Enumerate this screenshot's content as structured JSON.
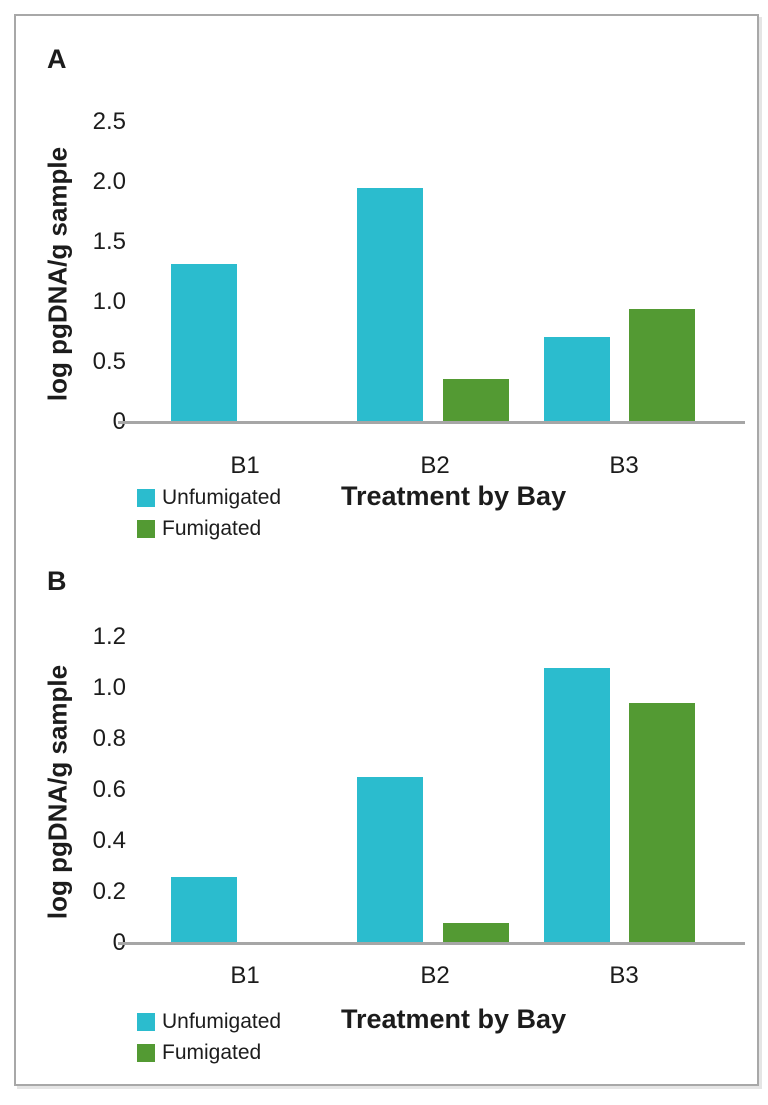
{
  "figure": {
    "panels": [
      {
        "label": "A",
        "y_axis_title": "log pgDNA/g sample",
        "x_axis_title": "Treatment by Bay",
        "legend": {
          "items": [
            {
              "label": "Unfumigated"
            },
            {
              "label": "Fumigated"
            }
          ]
        }
      },
      {
        "label": "B",
        "y_axis_title": "log pgDNA/g sample",
        "x_axis_title": "Treatment by Bay",
        "legend": {
          "items": [
            {
              "label": "Unfumigated"
            },
            {
              "label": "Fumigated"
            }
          ]
        }
      }
    ]
  },
  "colors": {
    "unfumigated": "#2BBCCE",
    "fumigated": "#539A33",
    "axis_line": "#A6A6A6",
    "frame_border": "#A8A8A8",
    "text": "#1C1C1C"
  },
  "chart_data": [
    {
      "type": "bar",
      "panel": "A",
      "title": "",
      "categories": [
        "B1",
        "B2",
        "B3"
      ],
      "series": [
        {
          "name": "Unfumigated",
          "color": "#2BBCCE",
          "values": [
            1.32,
            1.95,
            0.71
          ]
        },
        {
          "name": "Fumigated",
          "color": "#539A33",
          "values": [
            null,
            0.36,
            0.94
          ]
        }
      ],
      "xlabel": "Treatment by Bay",
      "ylabel": "log pgDNA/g sample",
      "ylim": [
        0,
        2.5
      ],
      "yticks": [
        {
          "value": 0,
          "label": "0"
        },
        {
          "value": 0.5,
          "label": "0.5"
        },
        {
          "value": 1,
          "label": "1.0"
        },
        {
          "value": 1.5,
          "label": "1.5"
        },
        {
          "value": 2,
          "label": "2.0"
        },
        {
          "value": 2.5,
          "label": "2.5"
        }
      ],
      "grid": false,
      "legend_position": "bottom-left"
    },
    {
      "type": "bar",
      "panel": "B",
      "title": "",
      "categories": [
        "B1",
        "B2",
        "B3"
      ],
      "series": [
        {
          "name": "Unfumigated",
          "color": "#2BBCCE",
          "values": [
            0.26,
            0.65,
            1.08
          ]
        },
        {
          "name": "Fumigated",
          "color": "#539A33",
          "values": [
            null,
            0.08,
            0.94
          ]
        }
      ],
      "xlabel": "Treatment by Bay",
      "ylabel": "log pgDNA/g sample",
      "ylim": [
        0,
        1.2
      ],
      "yticks": [
        {
          "value": 0,
          "label": "0"
        },
        {
          "value": 0.2,
          "label": "0.2"
        },
        {
          "value": 0.4,
          "label": "0.4"
        },
        {
          "value": 0.6,
          "label": "0.6"
        },
        {
          "value": 0.8,
          "label": "0.8"
        },
        {
          "value": 1,
          "label": "1.0"
        },
        {
          "value": 1.2,
          "label": "1.2"
        }
      ],
      "grid": false,
      "legend_position": "bottom-left"
    }
  ]
}
